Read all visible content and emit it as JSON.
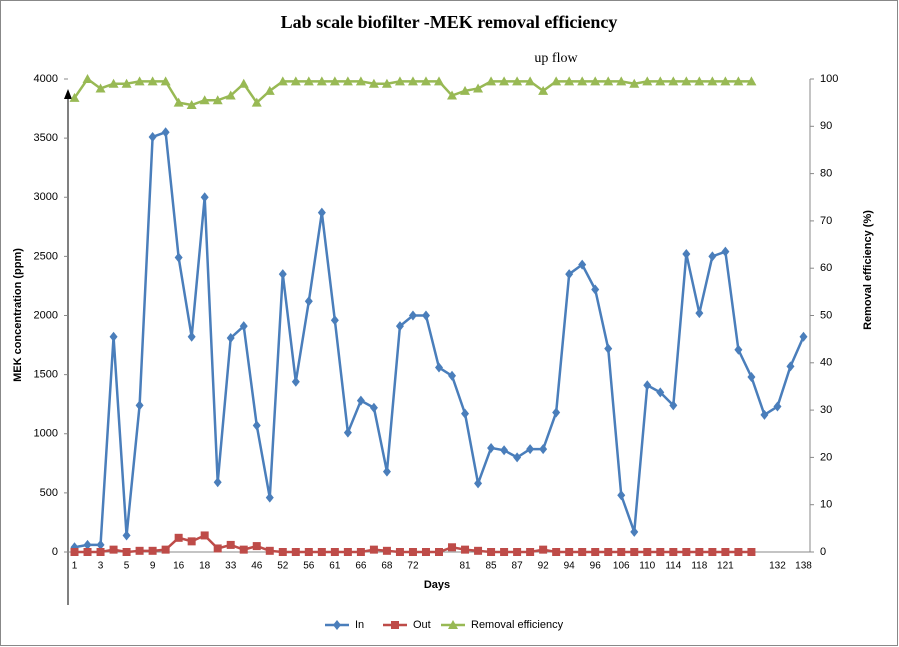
{
  "chart_data": {
    "type": "line",
    "title": "Lab scale biofilter -MEK removal efficiency",
    "annotation": "up flow",
    "x_label": "Days",
    "y_label": "MEK concentration  (ppm)",
    "y2_label": "Removal efficiency  (%)",
    "categories": [
      "1",
      null,
      "3",
      null,
      "5",
      null,
      "9",
      null,
      "16",
      null,
      "18",
      null,
      "33",
      null,
      "46",
      null,
      "52",
      null,
      "56",
      null,
      "61",
      null,
      "66",
      null,
      "68",
      null,
      "72",
      null,
      null,
      null,
      "81",
      null,
      "85",
      null,
      "87",
      null,
      "92",
      null,
      "94",
      null,
      "96",
      null,
      "106",
      null,
      "110",
      null,
      "114",
      null,
      "118",
      null,
      "121",
      null,
      null,
      null,
      "132",
      null,
      "138"
    ],
    "ylim": [
      0,
      4000
    ],
    "yticks": [
      0,
      500,
      1000,
      1500,
      2000,
      2500,
      3000,
      3500,
      4000
    ],
    "y2lim": [
      0,
      100
    ],
    "y2ticks": [
      0,
      10,
      20,
      30,
      40,
      50,
      60,
      70,
      80,
      90,
      100
    ],
    "legend": "bottom",
    "series": [
      {
        "name": "In",
        "color": "#4a7ebb",
        "marker": "diamond",
        "values": [
          40,
          60,
          60,
          1820,
          140,
          1240,
          3510,
          3550,
          2490,
          1820,
          3000,
          590,
          1810,
          1910,
          1070,
          460,
          2350,
          1440,
          2120,
          2870,
          1960,
          1010,
          1280,
          1220,
          680,
          1910,
          2000,
          2000,
          1560,
          1490,
          1170,
          580,
          880,
          860,
          800,
          870,
          870,
          1180,
          2350,
          2430,
          2220,
          1720,
          480,
          170,
          1410,
          1350,
          1240,
          2520,
          2020,
          2500,
          2540,
          1710,
          1480,
          1160,
          1230,
          1570,
          1820
        ]
      },
      {
        "name": "Out",
        "color": "#be4b48",
        "marker": "square",
        "values": [
          0,
          0,
          0,
          20,
          0,
          10,
          10,
          20,
          120,
          90,
          140,
          30,
          60,
          20,
          50,
          10,
          0,
          0,
          0,
          0,
          0,
          0,
          0,
          20,
          10,
          0,
          0,
          0,
          0,
          40,
          20,
          10,
          0,
          0,
          0,
          0,
          20,
          0,
          0,
          0,
          0,
          0,
          0,
          0,
          0,
          0,
          0,
          0,
          0,
          0,
          0,
          0,
          0,
          null,
          null,
          null,
          null
        ]
      },
      {
        "name": "Removal efficiency",
        "color": "#98b954",
        "marker": "triangle",
        "axis": "y2",
        "values": [
          96,
          100,
          98,
          99,
          99,
          99.5,
          99.5,
          99.5,
          95,
          94.5,
          95.5,
          95.5,
          96.5,
          99,
          95,
          97.5,
          99.5,
          99.5,
          99.5,
          99.5,
          99.5,
          99.5,
          99.5,
          99,
          99,
          99.5,
          99.5,
          99.5,
          99.5,
          96.5,
          97.5,
          98,
          99.5,
          99.5,
          99.5,
          99.5,
          97.5,
          99.5,
          99.5,
          99.5,
          99.5,
          99.5,
          99.5,
          99,
          99.5,
          99.5,
          99.5,
          99.5,
          99.5,
          99.5,
          99.5,
          99.5,
          99.5,
          null,
          null,
          null,
          null
        ]
      }
    ]
  }
}
